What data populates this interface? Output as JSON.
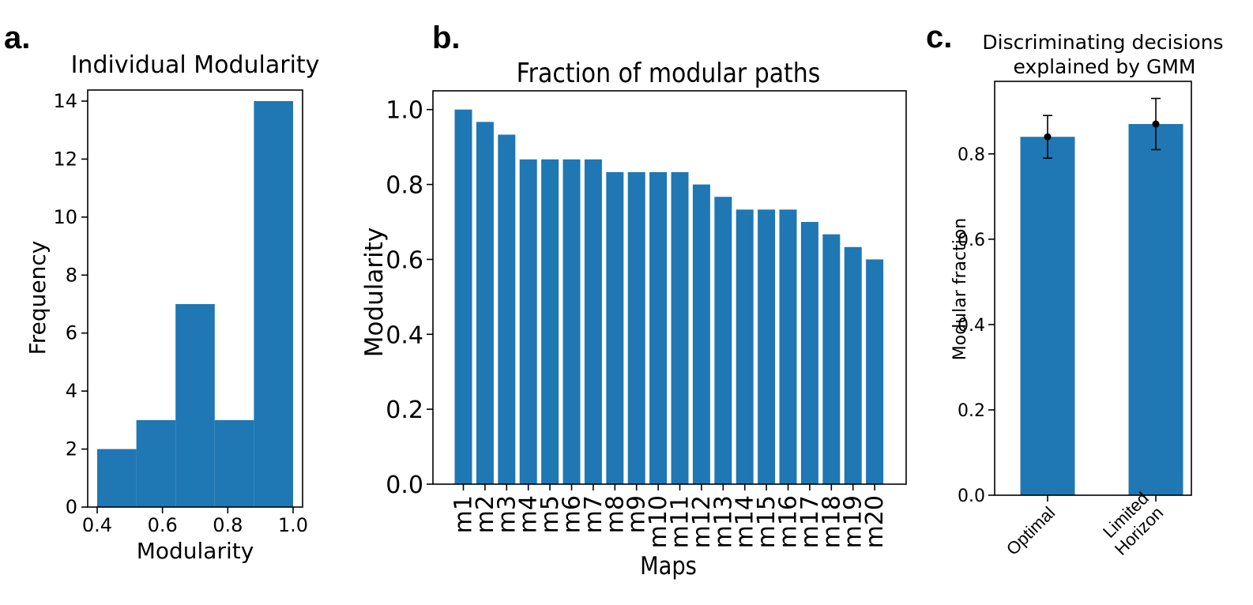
{
  "colors": {
    "bar": "#1f77b4",
    "axis": "#000000",
    "errorbar": "#000000"
  },
  "chart_data": [
    {
      "panel_label": "a.",
      "type": "bar",
      "title": "Individual Modularity",
      "xlabel": "Modularity",
      "ylabel": "Frequency",
      "xlim": [
        0.4,
        1.0
      ],
      "ylim": [
        0,
        14
      ],
      "bin_edges": [
        0.4,
        0.52,
        0.64,
        0.76,
        0.88,
        1.0
      ],
      "values": [
        2,
        3,
        7,
        3,
        14
      ],
      "xticks": [
        0.4,
        0.6,
        0.8,
        1.0
      ],
      "xtick_labels": [
        "0.4",
        "0.6",
        "0.8",
        "1.0"
      ],
      "yticks": [
        0,
        2,
        4,
        6,
        8,
        10,
        12,
        14
      ],
      "ytick_labels": [
        "0",
        "2",
        "4",
        "6",
        "8",
        "10",
        "12",
        "14"
      ],
      "grid": false
    },
    {
      "panel_label": "b.",
      "type": "bar",
      "title": "Fraction of modular paths",
      "xlabel": "Maps",
      "ylabel": "Modularity",
      "categories": [
        "m1",
        "m2",
        "m3",
        "m4",
        "m5",
        "m6",
        "m7",
        "m8",
        "m9",
        "m10",
        "m11",
        "m12",
        "m13",
        "m14",
        "m15",
        "m16",
        "m17",
        "m18",
        "m19",
        "m20"
      ],
      "values": [
        1.0,
        0.967,
        0.933,
        0.867,
        0.867,
        0.867,
        0.867,
        0.833,
        0.833,
        0.833,
        0.833,
        0.8,
        0.767,
        0.733,
        0.733,
        0.733,
        0.7,
        0.667,
        0.633,
        0.6
      ],
      "ylim": [
        0,
        1.05
      ],
      "yticks": [
        0,
        0.2,
        0.4,
        0.6,
        0.8,
        1.0
      ],
      "ytick_labels": [
        "0.0",
        "0.2",
        "0.4",
        "0.6",
        "0.8",
        "1.0"
      ],
      "grid": false
    },
    {
      "panel_label": "c.",
      "type": "bar",
      "title": "Discriminating decisions explained by GMM",
      "title_lines": [
        "Discriminating decisions",
        "explained by GMM"
      ],
      "xlabel": "",
      "ylabel": "Modular fraction",
      "categories": [
        "Optimal",
        "Limited Horizon"
      ],
      "category_lines": [
        [
          "Optimal"
        ],
        [
          "Limited",
          "Horizon"
        ]
      ],
      "values": [
        0.84,
        0.87
      ],
      "error": [
        0.05,
        0.06
      ],
      "ylim": [
        0,
        0.97
      ],
      "yticks": [
        0,
        0.2,
        0.4,
        0.6,
        0.8
      ],
      "ytick_labels": [
        "0.0",
        "0.2",
        "0.4",
        "0.6",
        "0.8"
      ],
      "grid": false
    }
  ]
}
